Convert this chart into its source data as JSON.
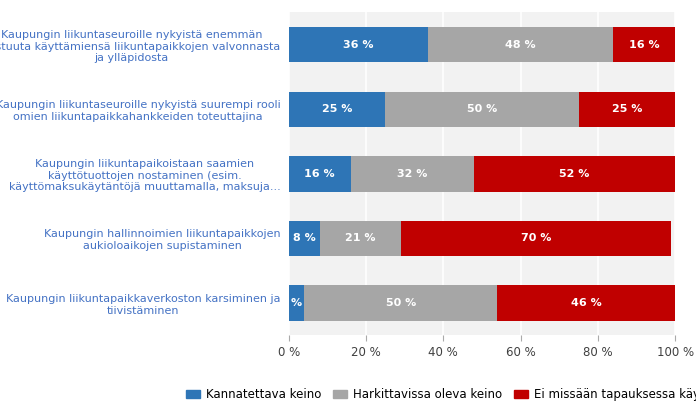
{
  "categories": [
    "Kaupungin liikuntaseuroille nykyistä enemmän\nvastuuta käyttämiensä liikuntapaikkojen valvonnasta\nja ylläpidosta",
    "Kaupungin liikuntaseuroille nykyistä suurempi rooli\nomien liikuntapaikkahankkeiden toteuttajina",
    "Kaupungin liikuntapaikoistaan saamien\nkäyttötuottojen nostaminen (esim.\nkäyttömaksukäytäntöjä muuttamalla, maksuja...",
    "Kaupungin hallinnoimien liikuntapaikkojen\naukioloaikojen supistaminen",
    "Kaupungin liikuntapaikkaverkoston karsiminen ja\ntiivistäminen"
  ],
  "blue_values": [
    36,
    25,
    16,
    8,
    4
  ],
  "gray_values": [
    48,
    50,
    32,
    21,
    50
  ],
  "red_values": [
    16,
    25,
    52,
    70,
    46
  ],
  "blue_labels": [
    "36 %",
    "25 %",
    "16 %",
    "8 %",
    "%"
  ],
  "gray_labels": [
    "48 %",
    "50 %",
    "32 %",
    "21 %",
    "50 %"
  ],
  "red_labels": [
    "16 %",
    "25 %",
    "52 %",
    "70 %",
    "46 %"
  ],
  "blue_color": "#2E75B6",
  "gray_color": "#A6A6A6",
  "red_color": "#C00000",
  "legend_labels": [
    "Kannatettava keino",
    "Harkittavissa oleva keino",
    "Ei missään tapauksessa käytettävä keino"
  ],
  "xlabel_ticks": [
    0,
    20,
    40,
    60,
    80,
    100
  ],
  "xlabel_tick_labels": [
    "0 %",
    "20 %",
    "40 %",
    "60 %",
    "80 %",
    "100 %"
  ],
  "background_color": "#FFFFFF",
  "plot_bg_color": "#F2F2F2",
  "label_fontsize": 8.0,
  "category_fontsize": 8.0,
  "legend_fontsize": 8.5,
  "bar_height": 0.55
}
